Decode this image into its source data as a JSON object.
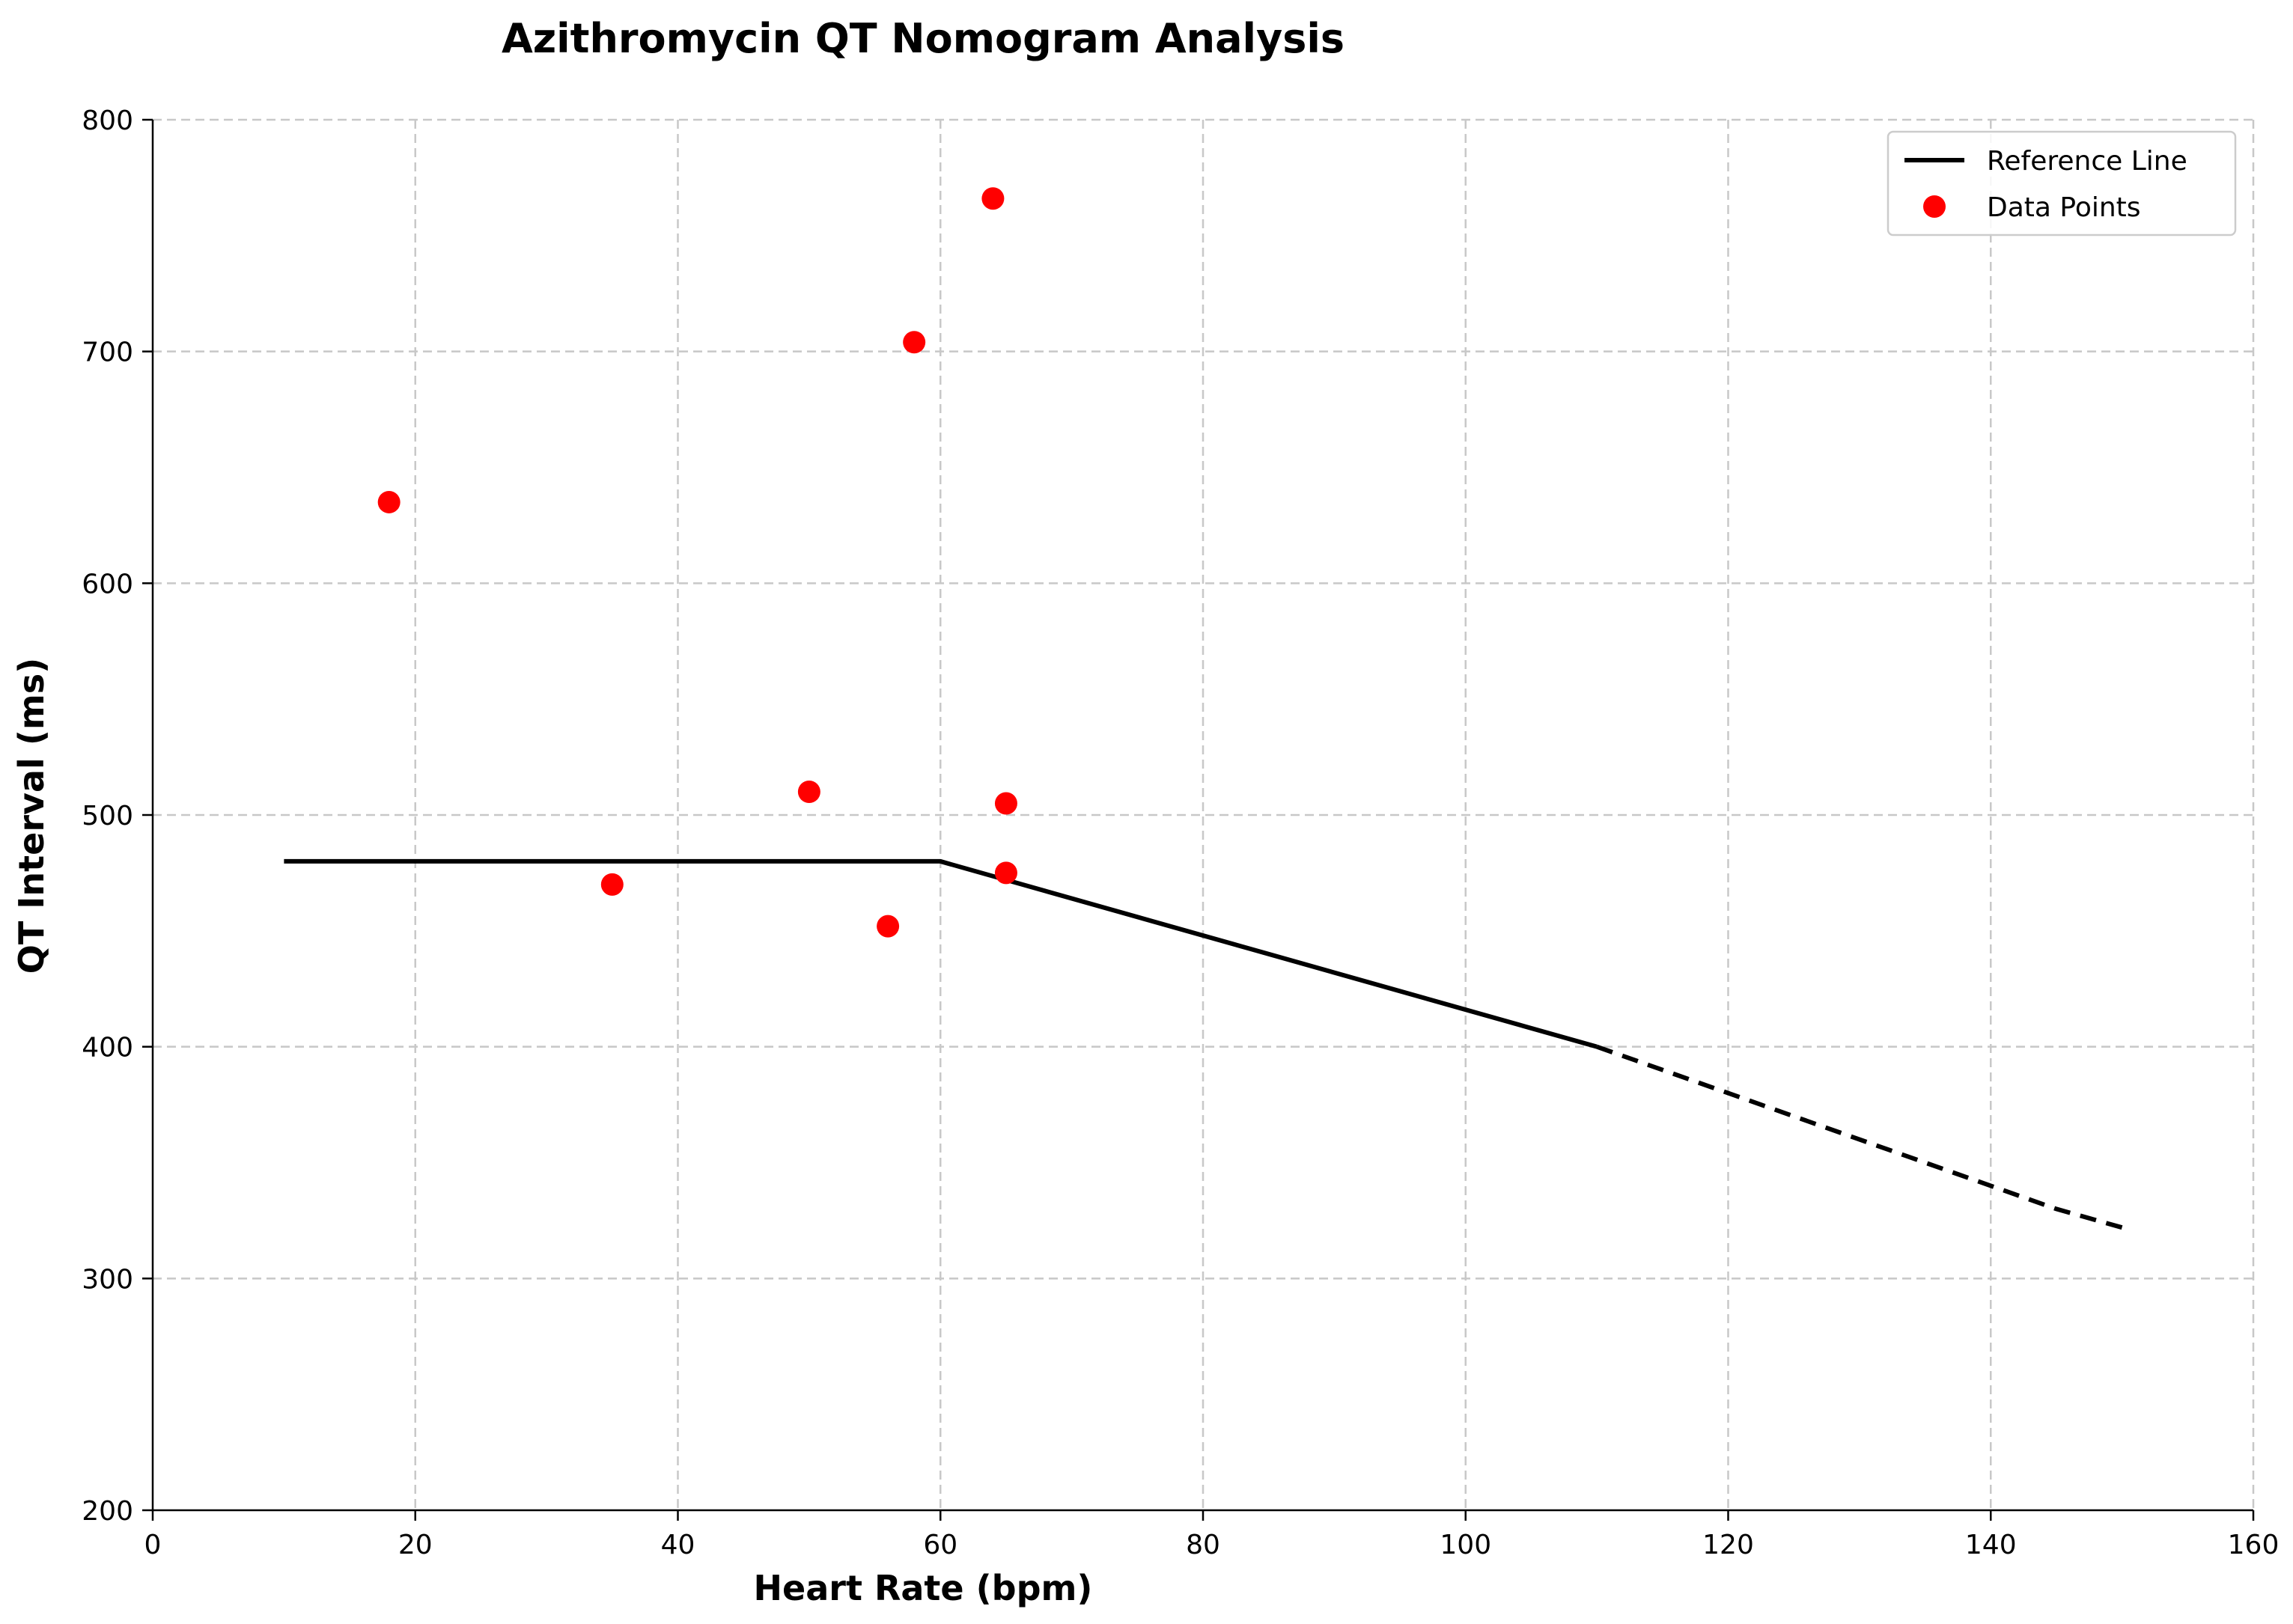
{
  "chart_data": {
    "type": "scatter",
    "title": "Azithromycin QT Nomogram Analysis",
    "xlabel": "Heart Rate (bpm)",
    "ylabel": "QT Interval (ms)",
    "xlim": [
      0,
      160
    ],
    "ylim": [
      200,
      800
    ],
    "xticks": [
      0,
      20,
      40,
      60,
      80,
      100,
      120,
      140,
      160
    ],
    "yticks": [
      200,
      300,
      400,
      500,
      600,
      700,
      800
    ],
    "grid": true,
    "legend_position": "top-right",
    "series": [
      {
        "name": "Reference Line",
        "kind": "line",
        "color": "#000000",
        "solid": {
          "x": [
            10,
            60,
            110
          ],
          "y": [
            480,
            480,
            400
          ]
        },
        "dashed": {
          "x": [
            110,
            145,
            150
          ],
          "y": [
            400,
            330,
            322
          ]
        }
      },
      {
        "name": "Data Points",
        "kind": "scatter",
        "color": "#ff0000",
        "x": [
          18,
          35,
          50,
          56,
          58,
          64,
          65,
          65
        ],
        "y": [
          635,
          470,
          510,
          452,
          704,
          766,
          505,
          475
        ]
      }
    ]
  }
}
